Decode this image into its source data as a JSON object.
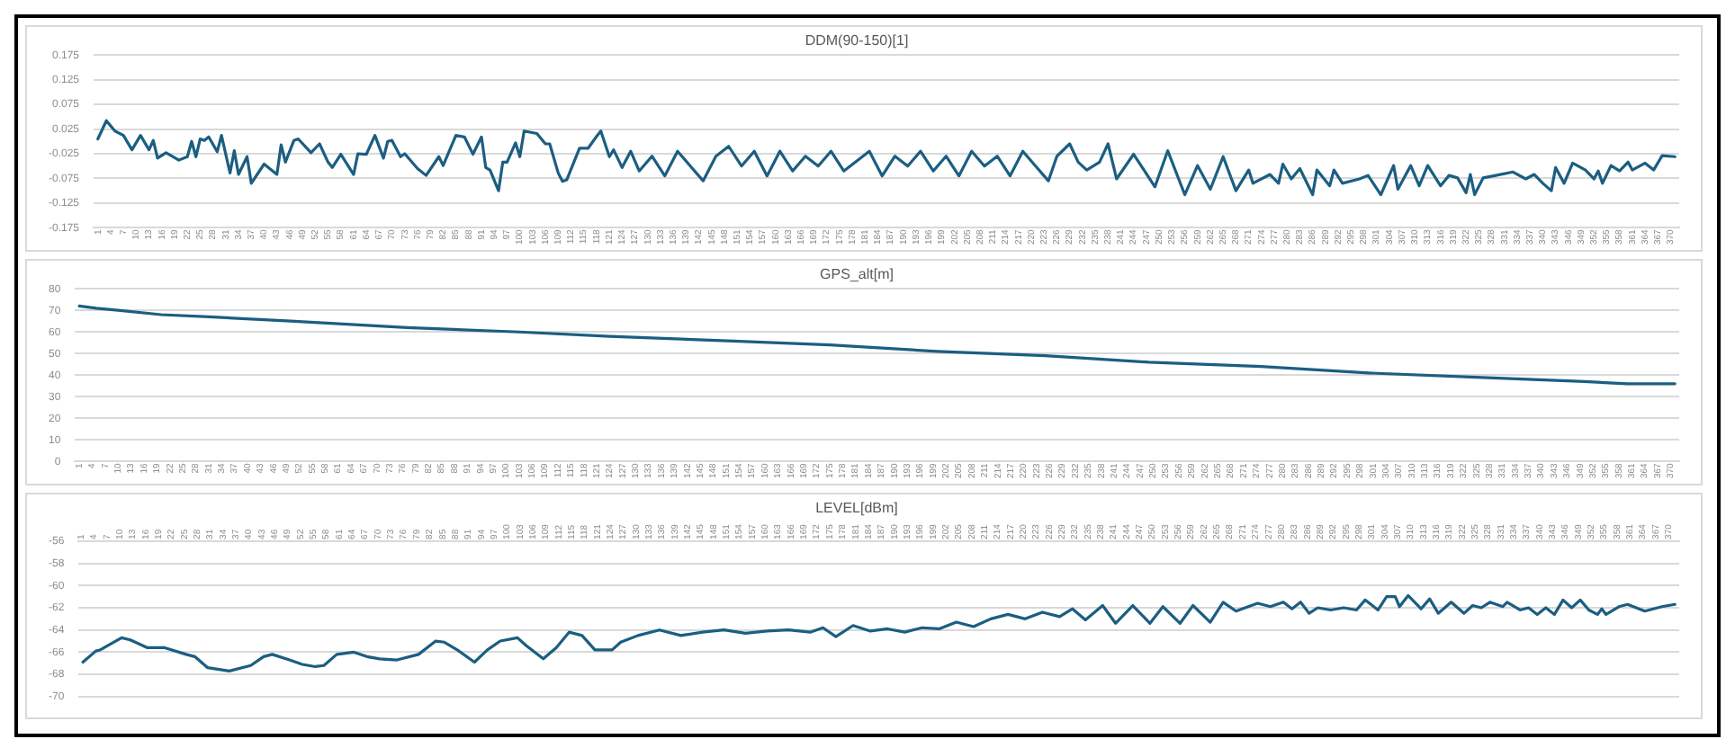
{
  "chart_data": [
    {
      "type": "line",
      "title": "DDM(90-150)[1]",
      "marker": "none",
      "grid": "y",
      "ylim": [
        -0.175,
        0.175
      ],
      "yticks": [
        -0.175,
        -0.125,
        -0.075,
        -0.025,
        0.025,
        0.075,
        0.125,
        0.175
      ],
      "xlim": [
        0,
        372
      ],
      "xticks": [
        1,
        4,
        7,
        10,
        13,
        16,
        19,
        22,
        25,
        28,
        31,
        34,
        37,
        40,
        43,
        46,
        49,
        52,
        55,
        58,
        61,
        64,
        67,
        70,
        73,
        76,
        79,
        82,
        85,
        88,
        91,
        94,
        97,
        100,
        103,
        106,
        109,
        112,
        115,
        118,
        121,
        124,
        127,
        130,
        133,
        136,
        139,
        142,
        145,
        148,
        151,
        154,
        157,
        160,
        163,
        166,
        169,
        172,
        175,
        178,
        181,
        184,
        187,
        190,
        193,
        196,
        199,
        202,
        205,
        208,
        211,
        214,
        217,
        220,
        223,
        226,
        229,
        232,
        235,
        238,
        241,
        244,
        247,
        250,
        253,
        256,
        259,
        262,
        265,
        268,
        271,
        274,
        277,
        280,
        283,
        286,
        289,
        292,
        295,
        298,
        301,
        304,
        307,
        310,
        313,
        316,
        319,
        322,
        325,
        328,
        331,
        334,
        337,
        340,
        343,
        346,
        349,
        352,
        355,
        358,
        361,
        364,
        367,
        370
      ],
      "series": [
        {
          "color": "#1b5e82",
          "x": [
            1,
            3,
            5,
            7,
            9,
            11,
            13,
            14,
            15,
            17,
            20,
            22,
            23,
            24,
            25,
            26,
            27,
            29,
            30,
            32,
            33,
            34,
            36,
            37,
            40,
            43,
            44,
            45,
            47,
            48,
            51,
            53,
            55,
            56,
            58,
            61,
            62,
            64,
            66,
            68,
            69,
            70,
            72,
            73,
            76,
            78,
            81,
            82,
            85,
            87,
            89,
            91,
            92,
            93,
            95,
            96,
            97,
            99,
            100,
            101,
            104,
            106,
            107,
            109,
            110,
            111,
            114,
            116,
            118,
            119,
            121,
            122,
            124,
            126,
            128,
            131,
            134,
            137,
            140,
            143,
            146,
            149,
            152,
            155,
            158,
            161,
            164,
            167,
            170,
            173,
            176,
            179,
            182,
            185,
            188,
            191,
            194,
            197,
            200,
            203,
            206,
            209,
            212,
            215,
            218,
            221,
            224,
            226,
            229,
            231,
            233,
            236,
            238,
            240,
            244,
            249,
            252,
            256,
            259,
            262,
            265,
            268,
            271,
            272,
            276,
            278,
            279,
            281,
            283,
            286,
            287,
            290,
            291,
            293,
            297,
            299,
            302,
            305,
            306,
            309,
            311,
            313,
            316,
            318,
            320,
            322,
            323,
            324,
            326,
            329,
            333,
            336,
            338,
            340,
            342,
            343,
            345,
            347,
            350,
            352,
            353,
            354,
            356,
            358,
            360,
            361,
            364,
            366,
            368,
            371
          ],
          "values": [
            0.005,
            0.042,
            0.021,
            0.012,
            -0.017,
            0.012,
            -0.017,
            0.002,
            -0.034,
            -0.023,
            -0.038,
            -0.031,
            0.0,
            -0.031,
            0.005,
            0.002,
            0.009,
            -0.021,
            0.012,
            -0.064,
            -0.019,
            -0.067,
            -0.031,
            -0.085,
            -0.046,
            -0.067,
            -0.007,
            -0.042,
            0.002,
            0.005,
            -0.023,
            -0.005,
            -0.042,
            -0.053,
            -0.026,
            -0.067,
            -0.025,
            -0.026,
            0.012,
            -0.034,
            0.0,
            0.002,
            -0.031,
            -0.025,
            -0.055,
            -0.069,
            -0.031,
            -0.049,
            0.012,
            0.009,
            -0.026,
            0.009,
            -0.053,
            -0.058,
            -0.1,
            -0.042,
            -0.042,
            -0.003,
            -0.031,
            0.021,
            0.016,
            -0.005,
            -0.005,
            -0.064,
            -0.081,
            -0.078,
            -0.014,
            -0.014,
            0.01,
            0.021,
            -0.031,
            -0.017,
            -0.053,
            -0.02,
            -0.06,
            -0.03,
            -0.07,
            -0.02,
            -0.05,
            -0.08,
            -0.03,
            -0.01,
            -0.05,
            -0.02,
            -0.07,
            -0.02,
            -0.06,
            -0.03,
            -0.05,
            -0.02,
            -0.06,
            -0.04,
            -0.02,
            -0.07,
            -0.03,
            -0.05,
            -0.02,
            -0.06,
            -0.03,
            -0.07,
            -0.02,
            -0.05,
            -0.03,
            -0.07,
            -0.02,
            -0.05,
            -0.08,
            -0.03,
            -0.005,
            -0.042,
            -0.058,
            -0.042,
            -0.005,
            -0.076,
            -0.026,
            -0.092,
            -0.019,
            -0.108,
            -0.049,
            -0.097,
            -0.031,
            -0.1,
            -0.058,
            -0.085,
            -0.067,
            -0.085,
            -0.046,
            -0.076,
            -0.055,
            -0.108,
            -0.058,
            -0.09,
            -0.058,
            -0.085,
            -0.076,
            -0.069,
            -0.108,
            -0.049,
            -0.097,
            -0.049,
            -0.09,
            -0.049,
            -0.09,
            -0.069,
            -0.074,
            -0.104,
            -0.067,
            -0.108,
            -0.074,
            -0.069,
            -0.062,
            -0.076,
            -0.067,
            -0.085,
            -0.1,
            -0.053,
            -0.085,
            -0.044,
            -0.058,
            -0.076,
            -0.06,
            -0.085,
            -0.049,
            -0.06,
            -0.042,
            -0.058,
            -0.044,
            -0.058,
            -0.029,
            -0.031
          ]
        }
      ]
    },
    {
      "type": "line",
      "title": "GPS_alt[m]",
      "marker": "none",
      "grid": "y",
      "ylim": [
        0,
        80
      ],
      "yticks": [
        0,
        10,
        20,
        30,
        40,
        50,
        60,
        70,
        80
      ],
      "xlim": [
        0,
        372
      ],
      "xticks": [
        1,
        4,
        7,
        10,
        13,
        16,
        19,
        22,
        25,
        28,
        31,
        34,
        37,
        40,
        43,
        46,
        49,
        52,
        55,
        58,
        61,
        64,
        67,
        70,
        73,
        76,
        79,
        82,
        85,
        88,
        91,
        94,
        97,
        100,
        103,
        106,
        109,
        112,
        115,
        118,
        121,
        124,
        127,
        130,
        133,
        136,
        139,
        142,
        145,
        148,
        151,
        154,
        157,
        160,
        163,
        166,
        169,
        172,
        175,
        178,
        181,
        184,
        187,
        190,
        193,
        196,
        199,
        202,
        205,
        208,
        211,
        214,
        217,
        220,
        223,
        226,
        229,
        232,
        235,
        238,
        241,
        244,
        247,
        250,
        253,
        256,
        259,
        262,
        265,
        268,
        271,
        274,
        277,
        280,
        283,
        286,
        289,
        292,
        295,
        298,
        301,
        304,
        307,
        310,
        313,
        316,
        319,
        322,
        325,
        328,
        331,
        334,
        337,
        340,
        343,
        346,
        349,
        352,
        355,
        358,
        361,
        364,
        367,
        370
      ],
      "series": [
        {
          "color": "#1b5e82",
          "x": [
            1,
            5,
            10,
            20,
            31,
            50,
            77,
            103,
            124,
            150,
            175,
            200,
            225,
            249,
            275,
            300,
            325,
            350,
            360,
            365,
            371
          ],
          "values": [
            72,
            71,
            70,
            68,
            67,
            65,
            62,
            60,
            58,
            56,
            54,
            51,
            49,
            46,
            44,
            41,
            39,
            37,
            36,
            36,
            36
          ]
        }
      ]
    },
    {
      "type": "line",
      "title": "LEVEL[dBm]",
      "marker": "none",
      "grid": "y",
      "ylim": [
        -70,
        -56
      ],
      "yticks": [
        -70,
        -68,
        -66,
        -64,
        -62,
        -60,
        -58,
        -56
      ],
      "xlim": [
        0,
        372
      ],
      "xticks": [
        1,
        4,
        7,
        10,
        13,
        16,
        19,
        22,
        25,
        28,
        31,
        34,
        37,
        40,
        43,
        46,
        49,
        52,
        55,
        58,
        61,
        64,
        67,
        70,
        73,
        76,
        79,
        82,
        85,
        88,
        91,
        94,
        97,
        100,
        103,
        106,
        109,
        112,
        115,
        118,
        121,
        124,
        127,
        130,
        133,
        136,
        139,
        142,
        145,
        148,
        151,
        154,
        157,
        160,
        163,
        166,
        169,
        172,
        175,
        178,
        181,
        184,
        187,
        190,
        193,
        196,
        199,
        202,
        205,
        208,
        211,
        214,
        217,
        220,
        223,
        226,
        229,
        232,
        235,
        238,
        241,
        244,
        247,
        250,
        253,
        256,
        259,
        262,
        265,
        268,
        271,
        274,
        277,
        280,
        283,
        286,
        289,
        292,
        295,
        298,
        301,
        304,
        307,
        310,
        313,
        316,
        319,
        322,
        325,
        328,
        331,
        334,
        337,
        340,
        343,
        346,
        349,
        352,
        355,
        358,
        361,
        364,
        367,
        370
      ],
      "series": [
        {
          "color": "#1b5e82",
          "x": [
            1,
            4,
            5,
            10,
            12,
            16,
            20,
            25,
            27,
            30,
            35,
            40,
            43,
            45,
            49,
            52,
            55,
            57,
            60,
            64,
            67,
            70,
            74,
            79,
            83,
            85,
            88,
            92,
            95,
            98,
            102,
            104,
            108,
            111,
            114,
            117,
            120,
            124,
            126,
            130,
            135,
            140,
            145,
            150,
            155,
            160,
            165,
            170,
            173,
            176,
            180,
            184,
            188,
            192,
            196,
            200,
            204,
            208,
            212,
            216,
            220,
            224,
            228,
            231,
            234,
            238,
            241,
            245,
            249,
            252,
            256,
            259,
            263,
            266,
            269,
            274,
            277,
            280,
            282,
            284,
            286,
            288,
            291,
            294,
            297,
            299,
            302,
            304,
            306,
            307,
            309,
            312,
            314,
            316,
            319,
            322,
            324,
            326,
            328,
            331,
            332,
            335,
            337,
            339,
            341,
            343,
            345,
            347,
            349,
            351,
            353,
            354,
            355,
            358,
            360,
            364,
            368,
            371
          ],
          "values": [
            -66.9,
            -65.9,
            -65.8,
            -64.7,
            -64.9,
            -65.6,
            -65.6,
            -66.2,
            -66.4,
            -67.4,
            -67.7,
            -67.2,
            -66.4,
            -66.2,
            -66.7,
            -67.1,
            -67.3,
            -67.2,
            -66.2,
            -66,
            -66.4,
            -66.6,
            -66.7,
            -66.2,
            -65,
            -65.1,
            -65.8,
            -66.9,
            -65.8,
            -65,
            -64.7,
            -65.4,
            -66.6,
            -65.6,
            -64.2,
            -64.5,
            -65.8,
            -65.8,
            -65.1,
            -64.5,
            -64,
            -64.5,
            -64.2,
            -64,
            -64.3,
            -64.1,
            -64,
            -64.2,
            -63.8,
            -64.6,
            -63.6,
            -64.1,
            -63.9,
            -64.2,
            -63.8,
            -63.9,
            -63.3,
            -63.7,
            -63,
            -62.6,
            -63,
            -62.4,
            -62.8,
            -62.1,
            -63.1,
            -61.8,
            -63.4,
            -61.8,
            -63.4,
            -61.9,
            -63.4,
            -61.8,
            -63.3,
            -61.5,
            -62.3,
            -61.6,
            -61.9,
            -61.5,
            -62.1,
            -61.5,
            -62.5,
            -62,
            -62.2,
            -62,
            -62.2,
            -61.3,
            -62.2,
            -61,
            -61,
            -61.9,
            -60.9,
            -62.1,
            -61.2,
            -62.5,
            -61.5,
            -62.5,
            -61.8,
            -62,
            -61.5,
            -61.9,
            -61.5,
            -62.2,
            -62,
            -62.6,
            -62,
            -62.6,
            -61.3,
            -62,
            -61.3,
            -62.2,
            -62.6,
            -62.1,
            -62.6,
            -61.9,
            -61.7,
            -62.3,
            -61.9,
            -61.7
          ]
        }
      ]
    }
  ]
}
